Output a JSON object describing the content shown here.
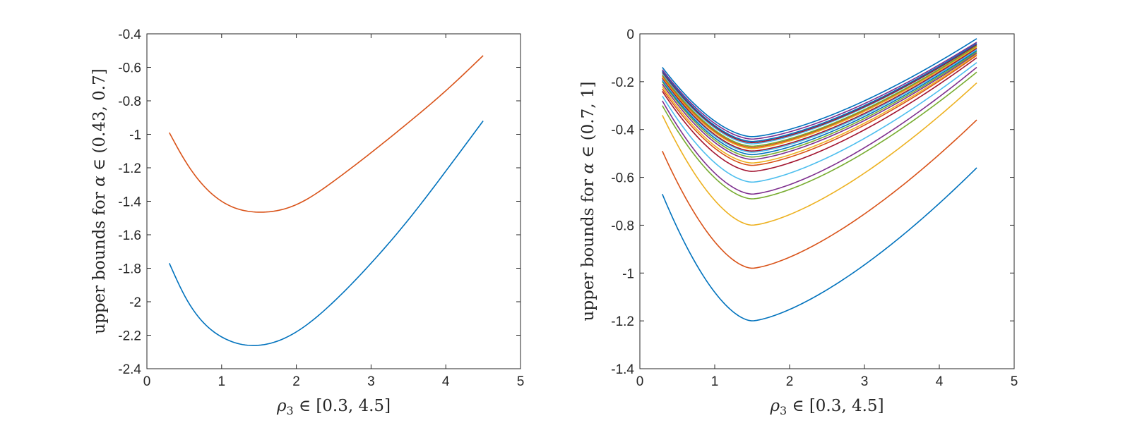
{
  "chart_data": [
    {
      "type": "line",
      "xlabel": "ρ3 ∈ [0.3, 4.5]",
      "xlabel_parts": {
        "symbol": "ρ",
        "sub": "3",
        "rest": " ∈ [0.3, 4.5]"
      },
      "ylabel": "upper bounds for α ∈ (0.43, 0.7]",
      "ylabel_parts": {
        "prefix": "upper bounds for ",
        "symbol": "α",
        "rest": " ∈ (0.43, 0.7]"
      },
      "xlim": [
        0,
        5
      ],
      "ylim": [
        -2.4,
        -0.4
      ],
      "xticks": [
        "0",
        "1",
        "2",
        "3",
        "4",
        "5"
      ],
      "yticks": [
        "-2.4",
        "-2.2",
        "-2",
        "-1.8",
        "-1.6",
        "-1.4",
        "-1.2",
        "-1",
        "-0.8",
        "-0.6",
        "-0.4"
      ],
      "grid": false,
      "legend": "none",
      "series": [
        {
          "color": "#0072BD",
          "x": [
            0.3,
            0.5,
            1.0,
            1.5,
            2.0,
            2.5,
            3.0,
            3.5,
            4.0,
            4.5
          ],
          "y": [
            -1.77,
            -1.96,
            -2.21,
            -2.26,
            -2.18,
            -2.0,
            -1.77,
            -1.51,
            -1.22,
            -0.92
          ]
        },
        {
          "color": "#D95319",
          "x": [
            0.3,
            0.5,
            1.0,
            1.5,
            2.0,
            2.5,
            3.0,
            3.5,
            4.0,
            4.5
          ],
          "y": [
            -0.99,
            -1.15,
            -1.4,
            -1.465,
            -1.42,
            -1.28,
            -1.11,
            -0.93,
            -0.74,
            -0.53
          ]
        }
      ]
    },
    {
      "type": "line",
      "xlabel": "ρ3 ∈ [0.3, 4.5]",
      "xlabel_parts": {
        "symbol": "ρ",
        "sub": "3",
        "rest": " ∈ [0.3, 4.5]"
      },
      "ylabel": "upper bounds for α ∈ (0.7, 1]",
      "ylabel_parts": {
        "prefix": "upper bounds for ",
        "symbol": "α",
        "rest": " ∈ (0.7, 1]"
      },
      "xlim": [
        0,
        5
      ],
      "ylim": [
        -1.4,
        0
      ],
      "xticks": [
        "0",
        "1",
        "2",
        "3",
        "4",
        "5"
      ],
      "yticks": [
        "-1.4",
        "-1.2",
        "-1",
        "-0.8",
        "-0.6",
        "-0.4",
        "-0.2",
        "0"
      ],
      "grid": false,
      "legend": "none",
      "series_curve_model": {
        "x_start": 0.3,
        "x_min": 1.5,
        "x_end": 4.5
      },
      "series": [
        {
          "color": "#0072BD",
          "start": -0.67,
          "min": -1.2,
          "end": -0.56
        },
        {
          "color": "#D95319",
          "start": -0.49,
          "min": -0.98,
          "end": -0.36
        },
        {
          "color": "#EDB120",
          "start": -0.34,
          "min": -0.8,
          "end": -0.205
        },
        {
          "color": "#77AC30",
          "start": -0.3,
          "min": -0.69,
          "end": -0.16
        },
        {
          "color": "#7E2F8E",
          "start": -0.28,
          "min": -0.67,
          "end": -0.14
        },
        {
          "color": "#4DBEEE",
          "start": -0.26,
          "min": -0.62,
          "end": -0.12
        },
        {
          "color": "#A2142F",
          "start": -0.24,
          "min": -0.575,
          "end": -0.1
        },
        {
          "color": "#D95319",
          "start": -0.23,
          "min": -0.55,
          "end": -0.09
        },
        {
          "color": "#EDB120",
          "start": -0.22,
          "min": -0.54,
          "end": -0.085
        },
        {
          "color": "#7E2F8E",
          "start": -0.21,
          "min": -0.525,
          "end": -0.08
        },
        {
          "color": "#77AC30",
          "start": -0.2,
          "min": -0.515,
          "end": -0.075
        },
        {
          "color": "#0072BD",
          "start": -0.195,
          "min": -0.505,
          "end": -0.07
        },
        {
          "color": "#4DBEEE",
          "start": -0.19,
          "min": -0.495,
          "end": -0.065
        },
        {
          "color": "#A2142F",
          "start": -0.185,
          "min": -0.49,
          "end": -0.06
        },
        {
          "color": "#EDB120",
          "start": -0.18,
          "min": -0.48,
          "end": -0.055
        },
        {
          "color": "#D95319",
          "start": -0.175,
          "min": -0.475,
          "end": -0.05
        },
        {
          "color": "#77AC30",
          "start": -0.17,
          "min": -0.47,
          "end": -0.05
        },
        {
          "color": "#4DBEEE",
          "start": -0.165,
          "min": -0.46,
          "end": -0.045
        },
        {
          "color": "#A2142F",
          "start": -0.16,
          "min": -0.455,
          "end": -0.045
        },
        {
          "color": "#0072BD",
          "start": -0.155,
          "min": -0.45,
          "end": -0.04
        },
        {
          "color": "#7E2F8E",
          "start": -0.15,
          "min": -0.44,
          "end": -0.035
        },
        {
          "color": "#0072BD",
          "start": -0.14,
          "min": -0.43,
          "end": -0.02
        }
      ]
    }
  ]
}
